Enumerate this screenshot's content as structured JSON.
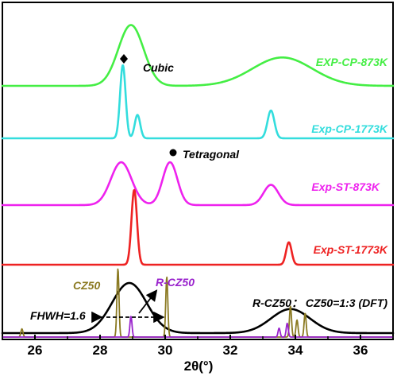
{
  "chart_data": {
    "type": "line",
    "xlabel": "2θ(°)",
    "xlim": [
      25,
      37
    ],
    "x_ticks": [
      "26",
      "28",
      "30",
      "32",
      "34",
      "36"
    ],
    "y_axis": "offset intensity (arbitrary)",
    "series": [
      {
        "name": "EXP-CP-873K",
        "color": "#44ee44",
        "peaks": [
          {
            "x": 28.95,
            "h": 0.9,
            "w": 0.55
          },
          {
            "x": 33.6,
            "h": 0.42,
            "w": 1.3
          }
        ],
        "baseline_level": 0.06
      },
      {
        "name": "Exp-CP-1773K",
        "color": "#33dddd",
        "peaks": [
          {
            "x": 28.7,
            "h": 1.0,
            "w": 0.12
          },
          {
            "x": 29.15,
            "h": 0.32,
            "w": 0.12
          },
          {
            "x": 33.25,
            "h": 0.38,
            "w": 0.15
          }
        ],
        "baseline_level": 0.0
      },
      {
        "name": "Exp-ST-873K",
        "color": "#ee22ee",
        "peaks": [
          {
            "x": 28.65,
            "h": 0.55,
            "w": 0.45
          },
          {
            "x": 30.15,
            "h": 0.55,
            "w": 0.32
          },
          {
            "x": 33.25,
            "h": 0.26,
            "w": 0.32
          }
        ],
        "baseline_level": 0.0
      },
      {
        "name": "Exp-ST-1773K",
        "color": "#ee2222",
        "peaks": [
          {
            "x": 29.05,
            "h": 1.0,
            "w": 0.12
          },
          {
            "x": 33.8,
            "h": 0.3,
            "w": 0.12
          }
        ],
        "baseline_level": 0.0
      },
      {
        "name": "R-CZ50",
        "color": "#000000",
        "peaks": [
          {
            "x": 28.9,
            "h": 1.0,
            "w": 0.75
          },
          {
            "x": 33.85,
            "h": 0.48,
            "w": 0.85
          }
        ],
        "baseline_level": 0.0
      },
      {
        "name": "CZ50",
        "color": "#8b7a22",
        "sticks": [
          {
            "x": 25.6,
            "h": 0.12
          },
          {
            "x": 28.55,
            "h": 1.0
          },
          {
            "x": 30.05,
            "h": 0.88
          },
          {
            "x": 33.85,
            "h": 0.45
          },
          {
            "x": 34.05,
            "h": 0.25
          },
          {
            "x": 34.3,
            "h": 0.35
          }
        ]
      },
      {
        "name": "R-CZ50 (violet)",
        "color": "#9922cc",
        "sticks": [
          {
            "x": 28.95,
            "h": 0.42
          },
          {
            "x": 33.5,
            "h": 0.18
          },
          {
            "x": 33.75,
            "h": 0.28
          }
        ]
      }
    ],
    "labels": {
      "exp_cp_873k": "EXP-CP-873K",
      "exp_cp_1773k": "Exp-CP-1773K",
      "exp_st_873k": "Exp-ST-873K",
      "exp_st_1773k": "Exp-ST-1773K",
      "cz50": "CZ50",
      "r_cz50": "R-CZ50",
      "ratio": "R-CZ50： CZ50=1:3 (DFT)",
      "fhwh": "FHWH=1.6"
    },
    "annotations": {
      "cubic": "Cubic",
      "tetragonal": "Tetragonal"
    },
    "colors": {
      "green": "#44ee44",
      "cyan": "#33dddd",
      "magenta": "#ee22ee",
      "red": "#ee2222",
      "black": "#000000",
      "olive": "#8b7a22",
      "violet": "#9922cc"
    }
  }
}
